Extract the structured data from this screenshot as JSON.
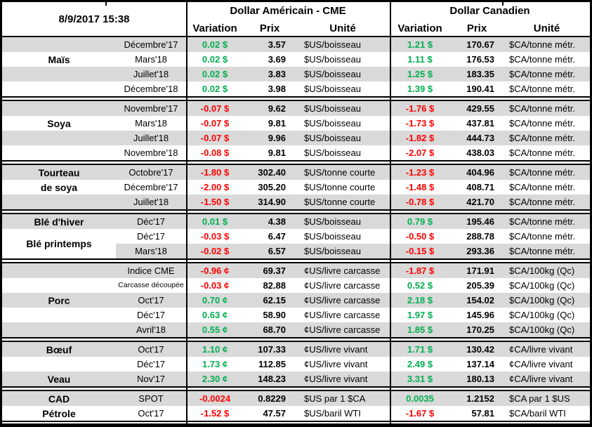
{
  "chart_data": {
    "type": "table",
    "timestamp": "8/9/2017 15:38",
    "currency_groups": {
      "us": "Dollar Américain - CME",
      "ca": "Dollar Canadien"
    },
    "column_headers": {
      "variation": "Variation",
      "prix": "Prix",
      "unite": "Unité"
    },
    "colors": {
      "positive": "#00B050",
      "negative": "#FF0000",
      "stripe": "#D9D9D9",
      "border": "#000000"
    },
    "sections": [
      {
        "labels": [
          {
            "text": "Maïs",
            "row": 1,
            "span": 1
          }
        ],
        "rows": [
          {
            "month": "Décembre'17",
            "us_variation": "0.02 $",
            "us_price": "3.57",
            "us_unit": "$US/boisseau",
            "ca_variation": "1.21 $",
            "ca_price": "170.67",
            "ca_unit": "$CA/tonne métr."
          },
          {
            "month": "Mars'18",
            "us_variation": "0.02 $",
            "us_price": "3.69",
            "us_unit": "$US/boisseau",
            "ca_variation": "1.11 $",
            "ca_price": "176.53",
            "ca_unit": "$CA/tonne métr."
          },
          {
            "month": "Juillet'18",
            "us_variation": "0.02 $",
            "us_price": "3.83",
            "us_unit": "$US/boisseau",
            "ca_variation": "1.25 $",
            "ca_price": "183.35",
            "ca_unit": "$CA/tonne métr."
          },
          {
            "month": "Décembre'18",
            "us_variation": "0.02 $",
            "us_price": "3.98",
            "us_unit": "$US/boisseau",
            "ca_variation": "1.39 $",
            "ca_price": "190.41",
            "ca_unit": "$CA/tonne métr."
          }
        ]
      },
      {
        "labels": [
          {
            "text": "Soya",
            "row": 1,
            "span": 1
          }
        ],
        "rows": [
          {
            "month": "Novembre'17",
            "us_variation": "-0.07 $",
            "us_price": "9.62",
            "us_unit": "$US/boisseau",
            "ca_variation": "-1.76 $",
            "ca_price": "429.55",
            "ca_unit": "$CA/tonne métr."
          },
          {
            "month": "Mars'18",
            "us_variation": "-0.07 $",
            "us_price": "9.81",
            "us_unit": "$US/boisseau",
            "ca_variation": "-1.73 $",
            "ca_price": "437.81",
            "ca_unit": "$CA/tonne métr."
          },
          {
            "month": "Juillet'18",
            "us_variation": "-0.07 $",
            "us_price": "9.96",
            "us_unit": "$US/boisseau",
            "ca_variation": "-1.82 $",
            "ca_price": "444.73",
            "ca_unit": "$CA/tonne métr."
          },
          {
            "month": "Novembre'18",
            "us_variation": "-0.08 $",
            "us_price": "9.81",
            "us_unit": "$US/boisseau",
            "ca_variation": "-2.07 $",
            "ca_price": "438.03",
            "ca_unit": "$CA/tonne métr."
          }
        ]
      },
      {
        "labels": [
          {
            "text": "Tourteau",
            "row": 0,
            "span": 1
          },
          {
            "text": "de soya",
            "row": 1,
            "span": 1
          }
        ],
        "rows": [
          {
            "month": "Octobre'17",
            "us_variation": "-1.80 $",
            "us_price": "302.40",
            "us_unit": "$US/tonne courte",
            "ca_variation": "-1.23 $",
            "ca_price": "404.96",
            "ca_unit": "$CA/tonne métr."
          },
          {
            "month": "Décembre'17",
            "us_variation": "-2.00 $",
            "us_price": "305.20",
            "us_unit": "$US/tonne courte",
            "ca_variation": "-1.48 $",
            "ca_price": "408.71",
            "ca_unit": "$CA/tonne métr."
          },
          {
            "month": "Juillet'18",
            "us_variation": "-1.50 $",
            "us_price": "314.90",
            "us_unit": "$US/tonne courte",
            "ca_variation": "-0.78 $",
            "ca_price": "421.70",
            "ca_unit": "$CA/tonne métr."
          }
        ]
      },
      {
        "labels": [
          {
            "text": "Blé d'hiver",
            "row": 0,
            "span": 1
          },
          {
            "text": "Blé printemps",
            "row": 1,
            "span": 2,
            "white_bg": true
          }
        ],
        "rows": [
          {
            "month": "Déc'17",
            "us_variation": "0.01 $",
            "us_price": "4.38",
            "us_unit": "$US/boisseau",
            "ca_variation": "0.79 $",
            "ca_price": "195.46",
            "ca_unit": "$CA/tonne métr."
          },
          {
            "month": "Déc'17",
            "us_variation": "-0.03 $",
            "us_price": "6.47",
            "us_unit": "$US/boisseau",
            "ca_variation": "-0.50 $",
            "ca_price": "288.78",
            "ca_unit": "$CA/tonne métr."
          },
          {
            "month": "Mars'18",
            "us_variation": "-0.02 $",
            "us_price": "6.57",
            "us_unit": "$US/boisseau",
            "ca_variation": "-0.15 $",
            "ca_price": "293.36",
            "ca_unit": "$CA/tonne métr."
          }
        ]
      },
      {
        "labels": [
          {
            "text": "Porc",
            "row": 2,
            "span": 1
          }
        ],
        "rows": [
          {
            "month": "Indice CME",
            "us_variation": "-0.96 ¢",
            "us_price": "69.37",
            "us_unit": "¢US/livre carcasse",
            "ca_variation": "-1.87 $",
            "ca_price": "171.91",
            "ca_unit": "$CA/100kg (Qc)"
          },
          {
            "month": "Carcasse découpée",
            "small": true,
            "us_variation": "-0.03 ¢",
            "us_price": "82.88",
            "us_unit": "¢US/livre carcasse",
            "ca_variation": "0.52 $",
            "ca_price": "205.39",
            "ca_unit": "$CA/100kg (Qc)"
          },
          {
            "month": "Oct'17",
            "us_variation": "0.70 ¢",
            "us_price": "62.15",
            "us_unit": "¢US/livre carcasse",
            "ca_variation": "2.18 $",
            "ca_price": "154.02",
            "ca_unit": "$CA/100kg (Qc)"
          },
          {
            "month": "Déc'17",
            "us_variation": "0.63 ¢",
            "us_price": "58.90",
            "us_unit": "¢US/livre carcasse",
            "ca_variation": "1.97 $",
            "ca_price": "145.96",
            "ca_unit": "$CA/100kg (Qc)"
          },
          {
            "month": "Avril'18",
            "us_variation": "0.55 ¢",
            "us_price": "68.70",
            "us_unit": "¢US/livre carcasse",
            "ca_variation": "1.85 $",
            "ca_price": "170.25",
            "ca_unit": "$CA/100kg (Qc)"
          }
        ]
      },
      {
        "labels": [
          {
            "text": "Bœuf",
            "row": 0,
            "span": 1
          },
          {
            "text": "Veau",
            "row": 2,
            "span": 1
          }
        ],
        "rows": [
          {
            "month": "Oct'17",
            "us_variation": "1.10 ¢",
            "us_price": "107.33",
            "us_unit": "¢US/livre vivant",
            "ca_variation": "1.71 $",
            "ca_price": "130.42",
            "ca_unit": "¢CA/livre vivant"
          },
          {
            "month": "Déc'17",
            "us_variation": "1.73 ¢",
            "us_price": "112.85",
            "us_unit": "¢US/livre vivant",
            "ca_variation": "2.49 $",
            "ca_price": "137.14",
            "ca_unit": "¢CA/livre vivant"
          },
          {
            "month": "Nov'17",
            "us_variation": "2.30 ¢",
            "us_price": "148.23",
            "us_unit": "¢US/livre vivant",
            "ca_variation": "3.31 $",
            "ca_price": "180.13",
            "ca_unit": "¢CA/livre vivant"
          }
        ]
      },
      {
        "labels": [
          {
            "text": "CAD",
            "row": 0,
            "span": 1
          },
          {
            "text": "Pétrole",
            "row": 1,
            "span": 1
          }
        ],
        "rows": [
          {
            "month": "SPOT",
            "us_variation": "-0.0024",
            "us_price": "0.8229",
            "us_unit": "$US par 1 $CA",
            "ca_variation": "0.0035",
            "ca_price": "1.2152",
            "ca_unit": "$CA par 1 $US"
          },
          {
            "month": "Oct'17",
            "us_variation": "-1.52 $",
            "us_price": "47.57",
            "us_unit": "$US/baril WTI",
            "ca_variation": "-1.67 $",
            "ca_price": "57.81",
            "ca_unit": "$CA/baril WTI"
          }
        ]
      }
    ]
  }
}
